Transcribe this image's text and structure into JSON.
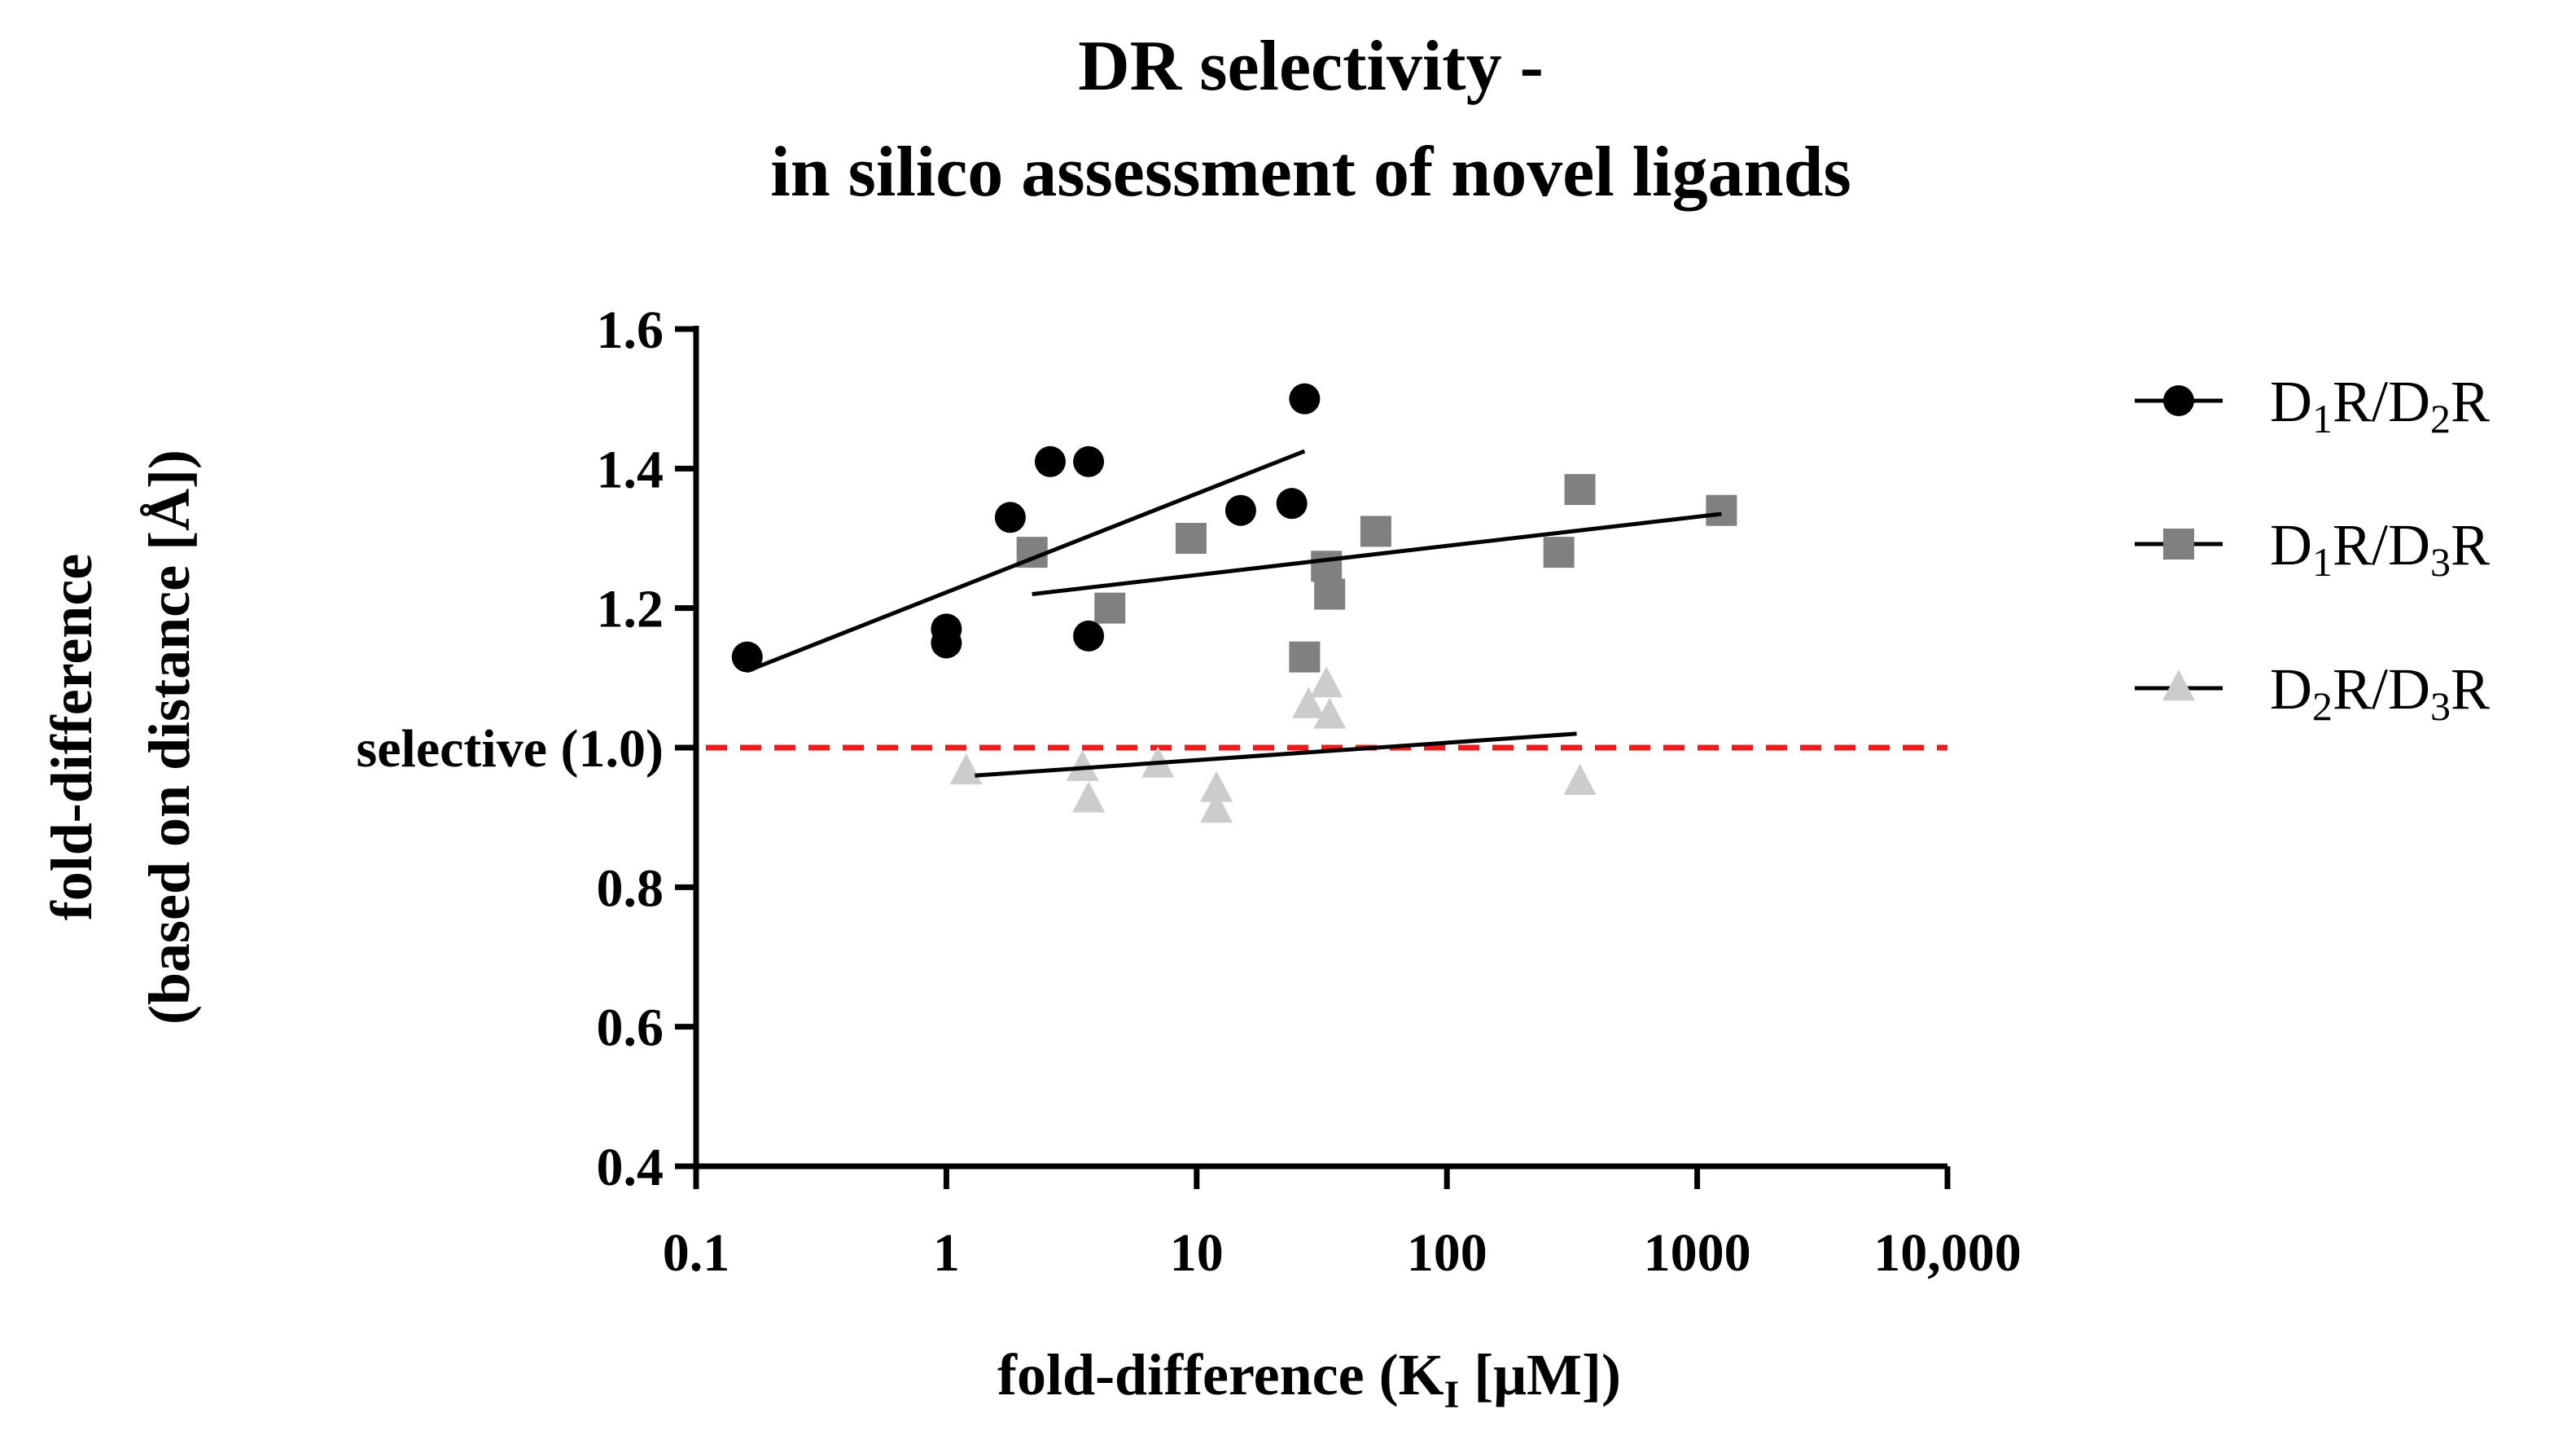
{
  "chart_data": {
    "type": "scatter",
    "title": [
      "DR selectivity -",
      "in silico assessment of novel ligands"
    ],
    "xlabel": {
      "main": "fold-difference (K",
      "sub": "I",
      "end": " [μM])"
    },
    "ylabel": [
      "fold-difference",
      "(based on distance [Å])"
    ],
    "x_scale": "log",
    "xlim": [
      0.1,
      10000
    ],
    "ylim": [
      0.4,
      1.6
    ],
    "x_ticks": [
      {
        "value": 0.1,
        "label": "0.1"
      },
      {
        "value": 1,
        "label": "1"
      },
      {
        "value": 10,
        "label": "10"
      },
      {
        "value": 100,
        "label": "100"
      },
      {
        "value": 1000,
        "label": "1000"
      },
      {
        "value": 10000,
        "label": "10,000"
      }
    ],
    "y_ticks": [
      {
        "value": 0.4,
        "label": "0.4"
      },
      {
        "value": 0.6,
        "label": "0.6"
      },
      {
        "value": 0.8,
        "label": "0.8"
      },
      {
        "value": 1.0,
        "label": "1.0"
      },
      {
        "value": 1.2,
        "label": "1.2"
      },
      {
        "value": 1.4,
        "label": "1.4"
      },
      {
        "value": 1.6,
        "label": "1.6"
      }
    ],
    "reference_line": {
      "y": 1.0,
      "label": "selective (1.0)",
      "color": "#ee1c1c"
    },
    "legend_position": "right",
    "series": [
      {
        "name": "D1R/D2R",
        "label_parts": [
          "D",
          "1",
          "R/D",
          "2",
          "R"
        ],
        "marker": "circle",
        "color": "#000000",
        "points": [
          [
            0.16,
            1.13
          ],
          [
            1.0,
            1.17
          ],
          [
            1.0,
            1.15
          ],
          [
            1.8,
            1.33
          ],
          [
            2.6,
            1.41
          ],
          [
            3.7,
            1.41
          ],
          [
            3.7,
            1.16
          ],
          [
            15,
            1.34
          ],
          [
            24,
            1.35
          ],
          [
            27,
            1.5
          ]
        ],
        "fit": {
          "x": [
            0.16,
            27
          ],
          "y": [
            1.11,
            1.425
          ]
        }
      },
      {
        "name": "D1R/D3R",
        "label_parts": [
          "D",
          "1",
          "R/D",
          "3",
          "R"
        ],
        "marker": "square",
        "color": "#808080",
        "points": [
          [
            2.2,
            1.28
          ],
          [
            4.5,
            1.2
          ],
          [
            9.5,
            1.3
          ],
          [
            27,
            1.13
          ],
          [
            33,
            1.26
          ],
          [
            34,
            1.22
          ],
          [
            52,
            1.31
          ],
          [
            280,
            1.28
          ],
          [
            340,
            1.37
          ],
          [
            1250,
            1.34
          ]
        ],
        "fit": {
          "x": [
            2.2,
            1250
          ],
          "y": [
            1.22,
            1.335
          ]
        }
      },
      {
        "name": "D2R/D3R",
        "label_parts": [
          "D",
          "2",
          "R/D",
          "3",
          "R"
        ],
        "marker": "triangle",
        "color": "#cccccc",
        "points": [
          [
            1.2,
            0.965
          ],
          [
            3.5,
            0.97
          ],
          [
            3.7,
            0.925
          ],
          [
            7,
            0.975
          ],
          [
            12,
            0.94
          ],
          [
            12,
            0.91
          ],
          [
            28,
            1.06
          ],
          [
            33,
            1.09
          ],
          [
            34,
            1.045
          ],
          [
            340,
            0.95
          ]
        ],
        "fit": {
          "x": [
            1.3,
            330
          ],
          "y": [
            0.96,
            1.02
          ]
        }
      }
    ]
  }
}
